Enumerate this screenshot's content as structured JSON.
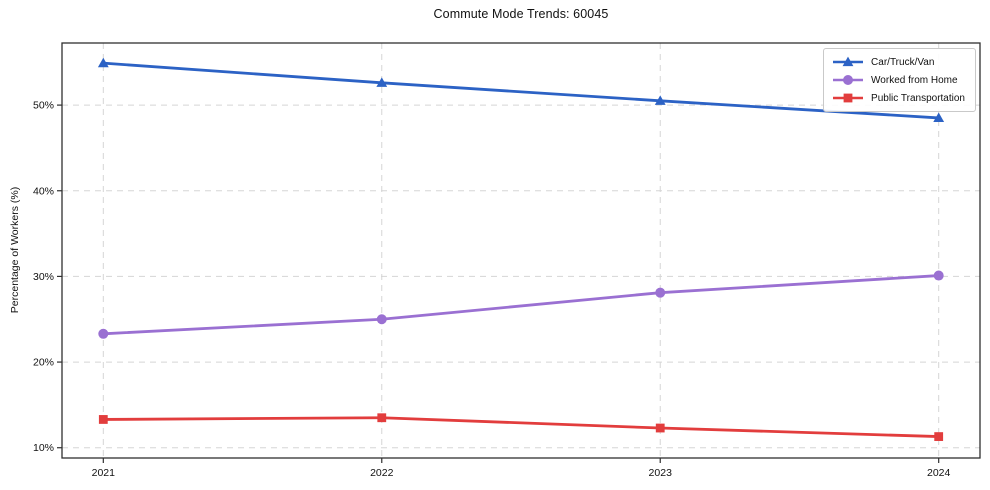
{
  "chart_data": {
    "type": "line",
    "title": "Commute Mode Trends: 60045",
    "xlabel": "",
    "ylabel": "Percentage of Workers (%)",
    "categories": [
      "2021",
      "2022",
      "2023",
      "2024"
    ],
    "series": [
      {
        "name": "Car/Truck/Van",
        "values": [
          54.9,
          52.6,
          50.5,
          48.5
        ],
        "color": "#2c62c5",
        "marker": "triangle"
      },
      {
        "name": "Worked from Home",
        "values": [
          23.3,
          25.0,
          28.1,
          30.1
        ],
        "color": "#9a70d2",
        "marker": "circle"
      },
      {
        "name": "Public Transportation",
        "values": [
          13.3,
          13.5,
          12.3,
          11.3
        ],
        "color": "#e23d3d",
        "marker": "square"
      }
    ],
    "ytick_values": [
      10,
      20,
      30,
      40,
      50
    ],
    "ytick_labels": [
      "10%",
      "20%",
      "30%",
      "40%",
      "50%"
    ],
    "ylim": [
      8.8,
      57.25
    ],
    "grid": "both-dashed",
    "legend_position": "upper right"
  }
}
